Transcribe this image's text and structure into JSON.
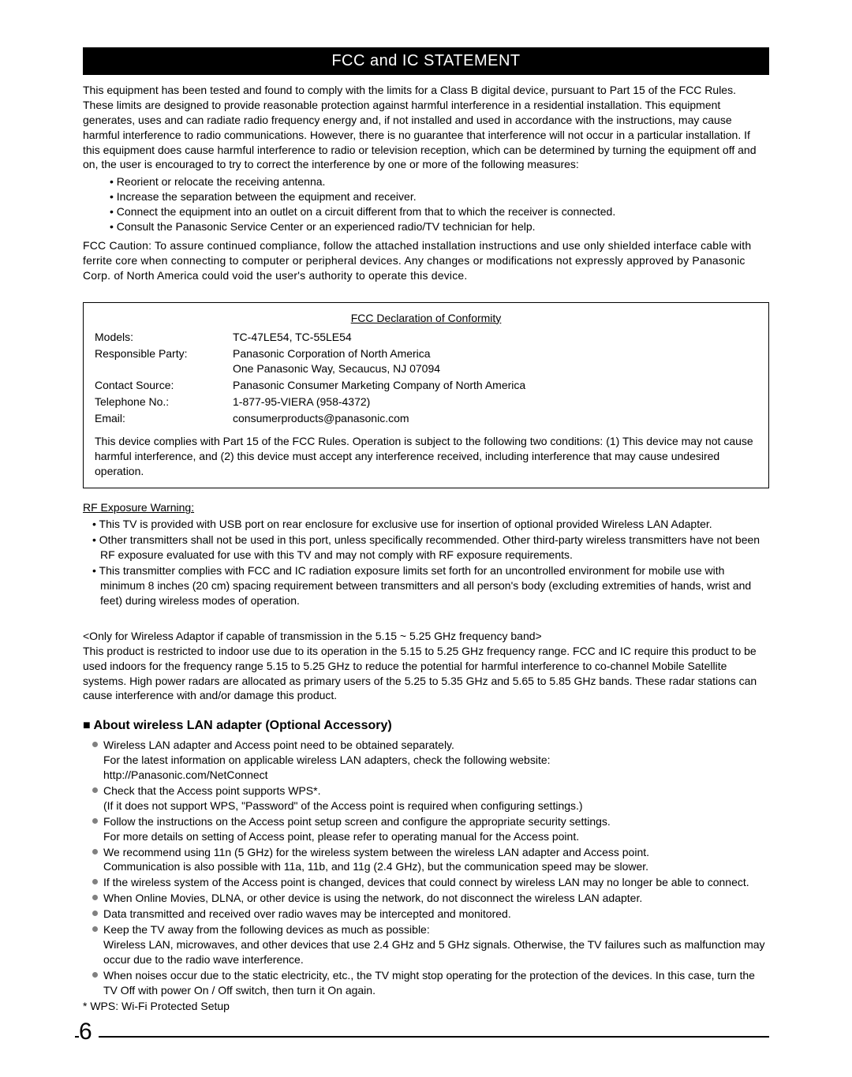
{
  "title": "FCC and IC STATEMENT",
  "intro": "This equipment has been tested and found to comply with the limits for a Class B digital device, pursuant to Part 15 of the FCC Rules.  These limits are designed to provide reasonable protection against harmful interference in a residential installation. This equipment generates, uses and can radiate radio frequency energy and, if not installed and used in accordance with the instructions, may cause harmful interference to radio communications.  However, there is no guarantee that interference will not occur in a particular installation.  If this equipment does cause harmful interference to radio or television reception, which can be determined by turning the equipment off and on, the user is encouraged to try to correct the interference by one or more of the following measures:",
  "measures": [
    "Reorient or relocate the receiving antenna.",
    "Increase the separation between the equipment and receiver.",
    "Connect the equipment into an outlet on a circuit different from that to which the receiver is connected.",
    "Consult the Panasonic Service Center or an experienced radio/TV technician for help."
  ],
  "caution": "FCC Caution:  To assure continued compliance, follow the attached installation instructions and use only shielded interface cable with ferrite core when connecting to computer or peripheral devices.  Any changes or modifications not expressly approved by Panasonic Corp. of North America could void the user's authority to operate this device.",
  "decl": {
    "title": "FCC Declaration of Conformity",
    "rows": [
      {
        "label": "Models:",
        "value": "TC-47LE54, TC-55LE54"
      },
      {
        "label": "Responsible Party:",
        "value": "Panasonic Corporation of North America\nOne Panasonic Way, Secaucus, NJ 07094"
      },
      {
        "label": "Contact Source:",
        "value": "Panasonic Consumer Marketing Company of North America"
      },
      {
        "label": "Telephone No.:",
        "value": "1-877-95-VIERA (958-4372)"
      },
      {
        "label": "Email:",
        "value": "consumerproducts@panasonic.com"
      }
    ],
    "note": "This device complies with Part 15 of the FCC Rules. Operation is subject to the following two conditions: (1) This device may not cause harmful interference, and (2) this device must accept any interference received, including interference that may cause undesired operation."
  },
  "rf": {
    "heading": "RF Exposure Warning:",
    "items": [
      "This TV is provided with USB port on rear enclosure for exclusive use for insertion of optional provided Wireless LAN Adapter.",
      "Other transmitters shall not be used in this port, unless specifically recommended. Other third-party wireless transmitters have not been RF exposure evaluated for use with this TV and may not comply with RF exposure requirements.",
      "This transmitter complies with FCC and IC radiation exposure limits set forth for an uncontrolled environment for mobile use with minimum 8 inches (20 cm) spacing requirement between transmitters and all person's body (excluding extremities of hands, wrist and feet) during wireless modes of operation."
    ]
  },
  "wireless_only": "<Only for Wireless Adaptor if capable of transmission in the 5.15 ~ 5.25 GHz frequency band>\nThis product is restricted to indoor use due to its operation in the 5.15 to 5.25 GHz frequency range. FCC and IC require this product to be used indoors for the frequency range 5.15 to 5.25 GHz to reduce the potential for harmful interference to co-channel Mobile Satellite systems. High power radars are allocated as primary users of the 5.25 to 5.35 GHz and 5.65 to 5.85 GHz bands. These radar stations can cause interference with and/or damage this product.",
  "about": {
    "heading": "About wireless LAN adapter (Optional Accessory)",
    "items": [
      "Wireless LAN adapter and Access point need to be obtained separately.\nFor the latest information on applicable wireless LAN adapters, check the following website:\nhttp://Panasonic.com/NetConnect",
      "Check that the Access point supports WPS*.\n(If it does not support WPS, \"Password\" of the Access point is required when configuring settings.)",
      "Follow the instructions on the Access point setup screen and configure the appropriate security settings.\nFor more details on setting of Access point, please refer to operating manual for the Access point.",
      "We recommend using 11n (5 GHz) for the wireless system between the wireless LAN adapter and Access point.\nCommunication is also possible with 11a, 11b, and 11g (2.4 GHz), but the communication speed may be slower.",
      "If the wireless system of the Access point is changed, devices that could connect by wireless LAN may no longer be able to connect.",
      "When Online Movies, DLNA, or other device is using the network, do not disconnect the wireless LAN adapter.",
      "Data transmitted and received over radio waves may be intercepted and monitored.",
      "Keep the TV away from the following devices as much as possible:\nWireless LAN, microwaves, and other devices that use 2.4 GHz and 5 GHz signals. Otherwise, the TV failures such as malfunction may occur due to the radio wave interference.",
      "When noises occur due to the static electricity, etc., the TV might stop operating for the protection of the devices. In this case, turn the TV Off with power On / Off switch, then turn it On again."
    ],
    "footnote": "* WPS: Wi-Fi Protected Setup"
  },
  "page_number": "6"
}
